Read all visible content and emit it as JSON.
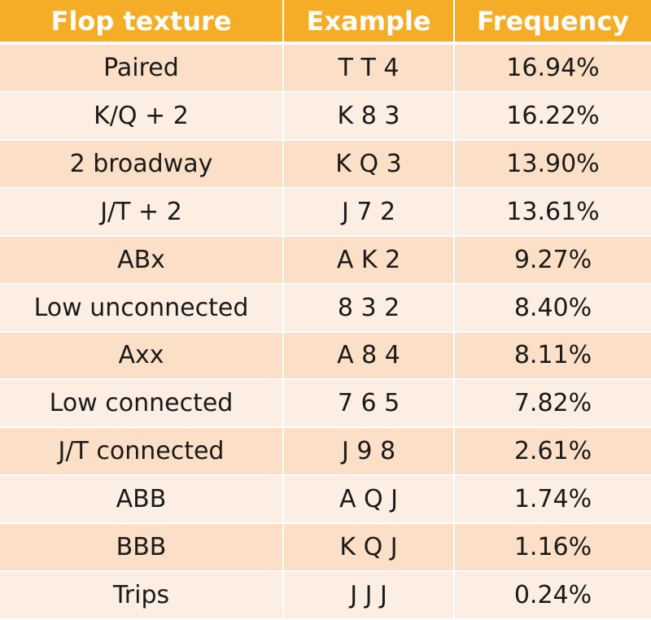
{
  "colors": {
    "header_bg": "#f5ac26",
    "header_text": "#ffffff",
    "row_odd": "#fbdfc6",
    "row_even": "#fdeee3",
    "text": "#1a1a1a"
  },
  "chart_data": {
    "type": "table",
    "columns": [
      "Flop texture",
      "Example",
      "Frequency"
    ],
    "rows": [
      [
        "Paired",
        "T T 4",
        "16.94%"
      ],
      [
        "K/Q + 2",
        "K 8 3",
        "16.22%"
      ],
      [
        "2 broadway",
        "K Q 3",
        "13.90%"
      ],
      [
        "J/T + 2",
        "J 7 2",
        "13.61%"
      ],
      [
        "ABx",
        "A K 2",
        "9.27%"
      ],
      [
        "Low unconnected",
        "8 3 2",
        "8.40%"
      ],
      [
        "Axx",
        "A 8 4",
        "8.11%"
      ],
      [
        "Low connected",
        "7 6 5",
        "7.82%"
      ],
      [
        "J/T connected",
        "J 9 8",
        "2.61%"
      ],
      [
        "ABB",
        "A Q J",
        "1.74%"
      ],
      [
        "BBB",
        "K Q J",
        "1.16%"
      ],
      [
        "Trips",
        "J J J",
        "0.24%"
      ]
    ]
  }
}
